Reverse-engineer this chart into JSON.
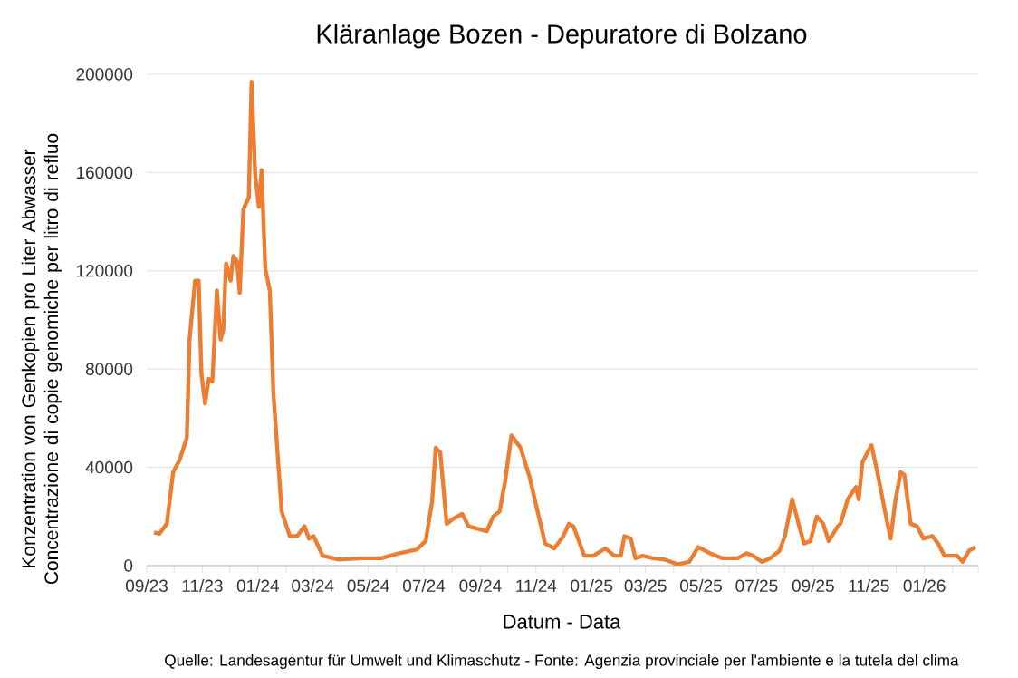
{
  "chart_data": {
    "type": "line",
    "title": "Kläranlage Bozen - Depuratore di Bolzano",
    "xlabel": "Datum - Data",
    "ylabel": "Konzentration von Genkopien pro Liter Abwasser Concentrazione di copie genomiche per litro di refluo",
    "annotations": [
      "Quelle: Landesagentur für Umwelt und Klimaschutz - Fonte: Agenzia provinciale per l'ambiente e la tutela del clima"
    ],
    "x": [
      "2023-09-09",
      "2023-09-15",
      "2023-09-23",
      "2023-09-30",
      "2023-10-07",
      "2023-10-15",
      "2023-10-18",
      "2023-10-24",
      "2023-10-28",
      "2023-10-31",
      "2023-11-04",
      "2023-11-08",
      "2023-11-12",
      "2023-11-17",
      "2023-11-21",
      "2023-11-24",
      "2023-11-27",
      "2023-12-02",
      "2023-12-05",
      "2023-12-09",
      "2023-12-12",
      "2023-12-16",
      "2023-12-22",
      "2023-12-25",
      "2023-12-29",
      "2024-01-02",
      "2024-01-05",
      "2024-01-09",
      "2024-01-14",
      "2024-01-18",
      "2024-01-27",
      "2024-02-05",
      "2024-02-13",
      "2024-02-21",
      "2024-02-26",
      "2024-03-02",
      "2024-03-12",
      "2024-03-29",
      "2024-04-25",
      "2024-05-15",
      "2024-06-04",
      "2024-06-23",
      "2024-07-03",
      "2024-07-10",
      "2024-07-14",
      "2024-07-19",
      "2024-07-26",
      "2024-08-02",
      "2024-08-12",
      "2024-08-19",
      "2024-08-29",
      "2024-09-08",
      "2024-09-15",
      "2024-09-22",
      "2024-09-28",
      "2024-10-05",
      "2024-10-15",
      "2024-10-25",
      "2024-11-04",
      "2024-11-11",
      "2024-11-21",
      "2024-12-01",
      "2024-12-07",
      "2024-12-12",
      "2024-12-17",
      "2024-12-24",
      "2025-01-03",
      "2025-01-16",
      "2025-01-26",
      "2025-02-02",
      "2025-02-06",
      "2025-02-13",
      "2025-02-18",
      "2025-02-26",
      "2025-03-09",
      "2025-03-22",
      "2025-04-05",
      "2025-04-18",
      "2025-04-28",
      "2025-05-11",
      "2025-05-24",
      "2025-06-10",
      "2025-06-20",
      "2025-06-27",
      "2025-07-07",
      "2025-07-16",
      "2025-07-26",
      "2025-08-01",
      "2025-08-09",
      "2025-08-16",
      "2025-08-22",
      "2025-08-29",
      "2025-09-05",
      "2025-09-12",
      "2025-09-18",
      "2025-09-28",
      "2025-10-01",
      "2025-10-09",
      "2025-10-18",
      "2025-10-21",
      "2025-10-25",
      "2025-11-01",
      "2025-11-04",
      "2025-11-11",
      "2025-11-21",
      "2025-11-25",
      "2025-11-30",
      "2025-12-06",
      "2025-12-10",
      "2025-12-17",
      "2025-12-24",
      "2025-12-31",
      "2026-01-10",
      "2026-01-16",
      "2026-01-23",
      "2026-02-06",
      "2026-02-12",
      "2026-02-19",
      "2026-02-26"
    ],
    "values": [
      13500,
      13000,
      17000,
      38000,
      43000,
      52000,
      92000,
      116000,
      116000,
      78000,
      66000,
      76000,
      75000,
      112000,
      92000,
      96000,
      123000,
      116000,
      126000,
      124000,
      111000,
      145000,
      150000,
      197000,
      159000,
      146000,
      161000,
      121000,
      112000,
      70000,
      22000,
      12000,
      12000,
      16000,
      11000,
      12000,
      4000,
      2500,
      3000,
      3000,
      5000,
      6500,
      10000,
      26000,
      48000,
      46000,
      17000,
      19000,
      21000,
      16000,
      15000,
      14000,
      20000,
      22000,
      34000,
      53000,
      48000,
      36000,
      20000,
      9000,
      7000,
      12000,
      17000,
      16000,
      11000,
      4000,
      4000,
      7000,
      4000,
      4000,
      12000,
      11000,
      3000,
      4000,
      3000,
      2500,
      500,
      1500,
      7500,
      5000,
      3000,
      3000,
      5000,
      4000,
      1500,
      3000,
      6000,
      12000,
      27000,
      17000,
      9000,
      10000,
      20000,
      17000,
      10000,
      16000,
      17000,
      27000,
      32000,
      27000,
      42000,
      47000,
      49000,
      37000,
      18000,
      11000,
      26000,
      38000,
      37000,
      17000,
      16000,
      11000,
      12000,
      9000,
      4000,
      4000,
      1500,
      6000,
      7500
    ],
    "color": "#ed7d31",
    "xlim": [
      "2023-09-01",
      "2026-03-01"
    ],
    "xticks": [
      {
        "value": "2023-09",
        "label": "09/23"
      },
      {
        "value": "2023-10",
        "label": null
      },
      {
        "value": "2023-11",
        "label": "11/23"
      },
      {
        "value": "2023-12",
        "label": null
      },
      {
        "value": "2024-01",
        "label": "01/24"
      },
      {
        "value": "2024-02",
        "label": null
      },
      {
        "value": "2024-03",
        "label": "03/24"
      },
      {
        "value": "2024-04",
        "label": null
      },
      {
        "value": "2024-05",
        "label": "05/24"
      },
      {
        "value": "2024-06",
        "label": null
      },
      {
        "value": "2024-07",
        "label": "07/24"
      },
      {
        "value": "2024-08",
        "label": null
      },
      {
        "value": "2024-09",
        "label": "09/24"
      },
      {
        "value": "2024-10",
        "label": null
      },
      {
        "value": "2024-11",
        "label": "11/24"
      },
      {
        "value": "2024-12",
        "label": null
      },
      {
        "value": "2025-01",
        "label": "01/25"
      },
      {
        "value": "2025-02",
        "label": null
      },
      {
        "value": "2025-03",
        "label": "03/25"
      },
      {
        "value": "2025-04",
        "label": null
      },
      {
        "value": "2025-05",
        "label": "05/25"
      },
      {
        "value": "2025-06",
        "label": null
      },
      {
        "value": "2025-07",
        "label": "07/25"
      },
      {
        "value": "2025-08",
        "label": null
      },
      {
        "value": "2025-09",
        "label": "09/25"
      },
      {
        "value": "2025-10",
        "label": null
      },
      {
        "value": "2025-11",
        "label": "11/25"
      },
      {
        "value": "2025-12",
        "label": null
      },
      {
        "value": "2026-01",
        "label": "01/26"
      },
      {
        "value": "2026-02",
        "label": null
      },
      {
        "value": "2026-03",
        "label": null
      }
    ],
    "ylim": [
      0,
      200000
    ],
    "yticks": [
      0,
      40000,
      80000,
      120000,
      160000,
      200000
    ],
    "grid": "y",
    "line_style": "solid"
  }
}
